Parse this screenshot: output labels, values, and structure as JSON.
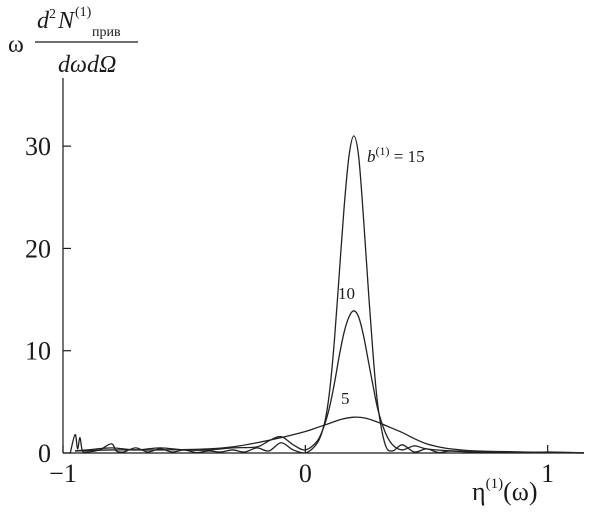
{
  "chart_data": {
    "type": "line",
    "ylabel": {
      "prefix": "ω",
      "numerator_d": "d",
      "numerator_exp": "2",
      "numerator_N": "N",
      "numerator_sup": "(1)",
      "numerator_sub": "прив",
      "denominator": "dωdΩ"
    },
    "xlabel": {
      "base": "η",
      "sup": "(1)",
      "suffix": "(ω)"
    },
    "xlim": [
      -1.0,
      1.15
    ],
    "ylim": [
      0,
      35
    ],
    "xticks": [
      {
        "value": -1,
        "label": "−1"
      },
      {
        "value": 0,
        "label": "0"
      },
      {
        "value": 1,
        "label": "1"
      }
    ],
    "yticks": [
      {
        "value": 0,
        "label": "0"
      },
      {
        "value": 10,
        "label": "10"
      },
      {
        "value": 20,
        "label": "20"
      },
      {
        "value": 30,
        "label": "30"
      }
    ],
    "annotations": {
      "b15_var": "b",
      "b15_sup": "(1)",
      "b15_eq": " = 15",
      "b10": "10",
      "b5": "5"
    },
    "series": [
      {
        "b": 15,
        "x": [
          -0.97,
          -0.95,
          -0.94,
          -0.93,
          -0.92,
          -0.9,
          -0.85,
          -0.8,
          -0.78,
          -0.75,
          -0.7,
          -0.65,
          -0.6,
          -0.55,
          -0.5,
          -0.45,
          -0.4,
          -0.35,
          -0.3,
          -0.25,
          -0.2,
          -0.15,
          -0.1,
          -0.05,
          0.0,
          0.05,
          0.08,
          0.1,
          0.12,
          0.14,
          0.16,
          0.18,
          0.2,
          0.22,
          0.24,
          0.26,
          0.28,
          0.3,
          0.33,
          0.36,
          0.4,
          0.45,
          0.5,
          0.55,
          0.6,
          0.7,
          0.8,
          0.9,
          1.0,
          1.1,
          1.15
        ],
        "y": [
          0,
          1.8,
          0.4,
          1.5,
          0.2,
          0.1,
          0.3,
          0.9,
          0.2,
          0.1,
          0.5,
          0.1,
          0.4,
          0.1,
          0.3,
          0.05,
          0.2,
          0.1,
          0.3,
          0.1,
          0.5,
          0.2,
          1.0,
          0.3,
          0.0,
          1.0,
          3.0,
          6.0,
          11.0,
          17.5,
          24.0,
          29.0,
          31.0,
          29.0,
          23.0,
          16.0,
          9.5,
          4.5,
          0.8,
          0.2,
          0.8,
          0.1,
          0.4,
          0.05,
          0.2,
          0.1,
          0.1,
          0.05,
          0.1,
          0.05,
          0.0
        ]
      },
      {
        "b": 10,
        "x": [
          -0.95,
          -0.9,
          -0.8,
          -0.7,
          -0.6,
          -0.5,
          -0.4,
          -0.3,
          -0.2,
          -0.15,
          -0.1,
          -0.05,
          0.0,
          0.05,
          0.08,
          0.1,
          0.12,
          0.14,
          0.16,
          0.18,
          0.2,
          0.22,
          0.24,
          0.26,
          0.28,
          0.3,
          0.33,
          0.36,
          0.4,
          0.45,
          0.5,
          0.6,
          0.7,
          0.8,
          0.9,
          1.0,
          1.15
        ],
        "y": [
          0.2,
          0.3,
          0.5,
          0.3,
          0.5,
          0.3,
          0.3,
          0.5,
          0.6,
          1.2,
          1.6,
          0.8,
          0.3,
          1.2,
          2.8,
          4.5,
          6.8,
          9.5,
          11.8,
          13.3,
          13.9,
          13.3,
          11.5,
          9.0,
          6.5,
          4.2,
          2.0,
          0.8,
          0.3,
          0.7,
          0.4,
          0.2,
          0.1,
          0.1,
          0.05,
          0.05,
          0.0
        ]
      },
      {
        "b": 5,
        "x": [
          -0.95,
          -0.8,
          -0.6,
          -0.4,
          -0.3,
          -0.2,
          -0.1,
          0.0,
          0.05,
          0.1,
          0.15,
          0.2,
          0.25,
          0.3,
          0.35,
          0.4,
          0.45,
          0.5,
          0.55,
          0.6,
          0.7,
          0.8,
          0.9,
          1.0,
          1.15
        ],
        "y": [
          0.2,
          0.3,
          0.3,
          0.4,
          0.6,
          1.0,
          1.5,
          2.1,
          2.5,
          2.9,
          3.3,
          3.5,
          3.4,
          3.0,
          2.5,
          2.0,
          1.4,
          0.9,
          0.6,
          0.4,
          0.2,
          0.15,
          0.1,
          0.05,
          0.0
        ]
      }
    ]
  }
}
